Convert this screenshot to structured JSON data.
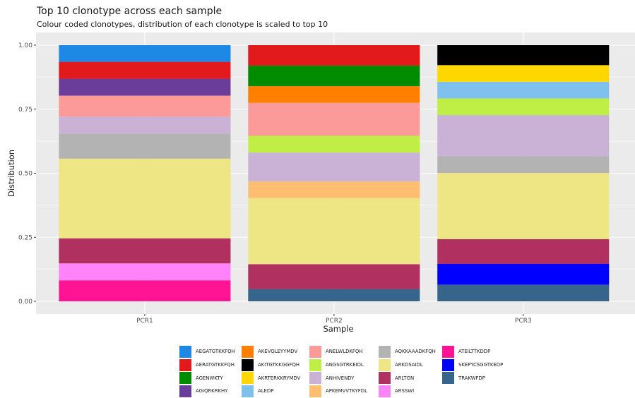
{
  "chart_data": {
    "type": "bar",
    "stacked": true,
    "title": "Top 10 clonotype across each sample",
    "subtitle": "Colour coded clonotypes, distribution of each clonotype is scaled to top 10",
    "xlabel": "Sample",
    "ylabel": "Distribution",
    "ylim": [
      0,
      1
    ],
    "yticks": [
      "0.00",
      "0.25",
      "0.50",
      "0.75",
      "1.00"
    ],
    "categories": [
      "PCR1",
      "PCR2",
      "PCR3"
    ],
    "legend_position": "bottom",
    "grid": true,
    "clonotypes": [
      {
        "name": "AEGATGTKKFQH",
        "color": "#1E88E5"
      },
      {
        "name": "AERATGTKKFQH",
        "color": "#E31A1C"
      },
      {
        "name": "AGENWKTY",
        "color": "#008B00"
      },
      {
        "name": "AGIQRKRKHY",
        "color": "#6A3D9A"
      },
      {
        "name": "AKEVQLEYYMDV",
        "color": "#FF7F00"
      },
      {
        "name": "AKITGTKKGGFQH",
        "color": "#000000"
      },
      {
        "name": "AKRTERKKRYMDV",
        "color": "#FFD700"
      },
      {
        "name": "ALEDP",
        "color": "#7EC0EE"
      },
      {
        "name": "ANELWLDKFQH",
        "color": "#FB9A99"
      },
      {
        "name": "ANGSGTRKEIDL",
        "color": "#BFEF45"
      },
      {
        "name": "ANHIVENDY",
        "color": "#CAB2D6"
      },
      {
        "name": "APKEMVVTKYFDL",
        "color": "#FDBF6F"
      },
      {
        "name": "AQKKAAADKFQH",
        "color": "#B3B3B3"
      },
      {
        "name": "ARKDSAIDL",
        "color": "#EEE685"
      },
      {
        "name": "ARLTGN",
        "color": "#B03060"
      },
      {
        "name": "ARSSWI",
        "color": "#FF83FA"
      },
      {
        "name": "ATEILTTKDDP",
        "color": "#FF1493"
      },
      {
        "name": "SKEPYCSGGTKEDP",
        "color": "#0000FF"
      },
      {
        "name": "TRAKWFDP",
        "color": "#36648B"
      }
    ],
    "stacks": [
      {
        "sample": "PCR1",
        "segments": [
          {
            "clonotype": "ATEILTTKDDP",
            "value": 0.082
          },
          {
            "clonotype": "ARSSWI",
            "value": 0.066
          },
          {
            "clonotype": "ARLTGN",
            "value": 0.098
          },
          {
            "clonotype": "ARKDSAIDL",
            "value": 0.311
          },
          {
            "clonotype": "AQKKAAADKFQH",
            "value": 0.098
          },
          {
            "clonotype": "ANHIVENDY",
            "value": 0.066
          },
          {
            "clonotype": "ANELWLDKFQH",
            "value": 0.082
          },
          {
            "clonotype": "AGIQRKRKHY",
            "value": 0.066
          },
          {
            "clonotype": "AERATGTKKFQH",
            "value": 0.066
          },
          {
            "clonotype": "AEGATGTKKFQH",
            "value": 0.065
          }
        ]
      },
      {
        "sample": "PCR2",
        "segments": [
          {
            "clonotype": "TRAKWFDP",
            "value": 0.048
          },
          {
            "clonotype": "ARLTGN",
            "value": 0.097
          },
          {
            "clonotype": "ARKDSAIDL",
            "value": 0.258
          },
          {
            "clonotype": "APKEMVVTKYFDL",
            "value": 0.065
          },
          {
            "clonotype": "ANHIVENDY",
            "value": 0.113
          },
          {
            "clonotype": "ANGSGTRKEIDL",
            "value": 0.065
          },
          {
            "clonotype": "ANELWLDKFQH",
            "value": 0.129
          },
          {
            "clonotype": "AKEVQLEYYMDV",
            "value": 0.065
          },
          {
            "clonotype": "AGENWKTY",
            "value": 0.08
          },
          {
            "clonotype": "AERATGTKKFQH",
            "value": 0.08
          }
        ]
      },
      {
        "sample": "PCR3",
        "segments": [
          {
            "clonotype": "TRAKWFDP",
            "value": 0.065
          },
          {
            "clonotype": "SKEPYCSGGTKEDP",
            "value": 0.081
          },
          {
            "clonotype": "ARLTGN",
            "value": 0.097
          },
          {
            "clonotype": "ARKDSAIDL",
            "value": 0.258
          },
          {
            "clonotype": "AQKKAAADKFQH",
            "value": 0.065
          },
          {
            "clonotype": "ANHIVENDY",
            "value": 0.161
          },
          {
            "clonotype": "ANGSGTRKEIDL",
            "value": 0.065
          },
          {
            "clonotype": "ALEDP",
            "value": 0.065
          },
          {
            "clonotype": "AKRTERKKRYMDV",
            "value": 0.065
          },
          {
            "clonotype": "AKITGTKKGGFQH",
            "value": 0.078
          }
        ]
      }
    ]
  }
}
